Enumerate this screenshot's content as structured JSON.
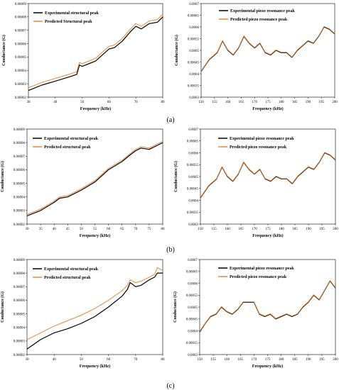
{
  "colors": {
    "experimental": "#000000",
    "predicted": "#e8873a",
    "frame": "#000000"
  },
  "panel_labels": [
    "(a)",
    "(b)",
    "(c)"
  ],
  "chart_data": [
    {
      "type": "line",
      "panel": "(a)",
      "side": "left",
      "xlabel": "Frequency (kHz)",
      "ylabel": "Conductance (G)",
      "xlim": [
        30,
        80
      ],
      "ylim": [
        2e-05,
        9e-05
      ],
      "xticks": [
        "30",
        "40",
        "50",
        "60",
        "70",
        "80"
      ],
      "yticks": [
        "0.00002",
        "0.00003",
        "0.00004",
        "0.00005",
        "0.00006",
        "0.00007",
        "0.00008",
        "0.00009"
      ],
      "legend_position": "top-left",
      "grid": false,
      "series": [
        {
          "name": "Experimental structural peak",
          "color": "experimental",
          "x": [
            30,
            35,
            40,
            45,
            48,
            49,
            50,
            55,
            60,
            62,
            65,
            68,
            70,
            72,
            75,
            78,
            80
          ],
          "y": [
            2.5e-05,
            2.9e-05,
            3.2e-05,
            3.5e-05,
            3.7e-05,
            4.4e-05,
            4.3e-05,
            4.7e-05,
            5.6e-05,
            5.7e-05,
            6.2e-05,
            6.9e-05,
            7.3e-05,
            7.1e-05,
            7.5e-05,
            7.6e-05,
            8e-05
          ]
        },
        {
          "name": "Predicted Structural peak",
          "color": "predicted",
          "x": [
            30,
            35,
            40,
            45,
            48,
            49,
            50,
            55,
            60,
            62,
            65,
            68,
            70,
            72,
            75,
            78,
            80
          ],
          "y": [
            2.7e-05,
            3.1e-05,
            3.4e-05,
            3.7e-05,
            3.9e-05,
            4.6e-05,
            4.5e-05,
            4.9e-05,
            5.8e-05,
            5.9e-05,
            6.4e-05,
            7.1e-05,
            7.5e-05,
            7.3e-05,
            7.7e-05,
            7.8e-05,
            8.2e-05
          ]
        }
      ]
    },
    {
      "type": "line",
      "panel": "(a)",
      "side": "right",
      "xlabel": "Frequency (kHz)",
      "ylabel": "Conductance (G)",
      "xlim": [
        150,
        200
      ],
      "ylim": [
        0.0003,
        0.0007
      ],
      "xticks": [
        "150",
        "155",
        "160",
        "165",
        "170",
        "175",
        "180",
        "185",
        "190",
        "195",
        "200"
      ],
      "yticks": [
        "0.0003",
        "0.00035",
        "0.0004",
        "0.00045",
        "0.0005",
        "0.00055",
        "0.0006",
        "0.00065",
        "0.0007"
      ],
      "legend_position": "top",
      "grid": false,
      "series": [
        {
          "name": "Experimental piezo resonance peak",
          "color": "experimental",
          "x": [
            150,
            153,
            156,
            158,
            160,
            162,
            164,
            166,
            168,
            170,
            172,
            174,
            176,
            178,
            180,
            182,
            184,
            186,
            188,
            190,
            192,
            194,
            196,
            198,
            200
          ],
          "y": [
            0.00041,
            0.00046,
            0.00049,
            0.00054,
            0.0005,
            0.00048,
            0.00051,
            0.00056,
            0.00053,
            0.00051,
            0.00053,
            0.00049,
            0.00048,
            0.0005,
            0.00049,
            0.00049,
            0.00047,
            0.0005,
            0.00052,
            0.00054,
            0.00053,
            0.00056,
            0.0006,
            0.00059,
            0.00057
          ]
        },
        {
          "name": "Predicted piezo resonance peak",
          "color": "predicted",
          "x": [
            150,
            153,
            156,
            158,
            160,
            162,
            164,
            166,
            168,
            170,
            172,
            174,
            176,
            178,
            180,
            182,
            184,
            186,
            188,
            190,
            192,
            194,
            196,
            198,
            200
          ],
          "y": [
            0.000412,
            0.000462,
            0.000492,
            0.000542,
            0.000502,
            0.000482,
            0.000512,
            0.000562,
            0.000532,
            0.000512,
            0.000532,
            0.000492,
            0.000482,
            0.000502,
            0.000492,
            0.000492,
            0.000472,
            0.000502,
            0.000522,
            0.000542,
            0.000532,
            0.000562,
            0.000602,
            0.000592,
            0.000572
          ]
        }
      ]
    },
    {
      "type": "line",
      "panel": "(b)",
      "side": "left",
      "xlabel": "Frequency (kHz)",
      "ylabel": "Conductance (G)",
      "xlim": [
        30,
        80
      ],
      "ylim": [
        2e-05,
        9e-05
      ],
      "xticks": [
        "30",
        "35",
        "40",
        "45",
        "50",
        "55",
        "60",
        "65",
        "70",
        "75",
        "80"
      ],
      "yticks": [
        "0.00002",
        "0.00003",
        "0.00004",
        "0.00005",
        "0.00006",
        "0.00007",
        "0.00008",
        "0.00009"
      ],
      "legend_position": "top-left",
      "grid": false,
      "series": [
        {
          "name": "Experimental structural peak",
          "color": "experimental",
          "x": [
            30,
            35,
            40,
            42,
            45,
            50,
            55,
            60,
            65,
            68,
            70,
            72,
            75,
            78,
            80
          ],
          "y": [
            2.6e-05,
            3e-05,
            3.6e-05,
            3.9e-05,
            4e-05,
            4.5e-05,
            5.1e-05,
            6e-05,
            6.6e-05,
            7.1e-05,
            7.4e-05,
            7.6e-05,
            7.5e-05,
            7.8e-05,
            8e-05
          ]
        },
        {
          "name": "Predicted structural peak",
          "color": "predicted",
          "x": [
            30,
            35,
            40,
            42,
            45,
            50,
            55,
            60,
            65,
            68,
            70,
            72,
            75,
            78,
            80
          ],
          "y": [
            2.7e-05,
            3.1e-05,
            3.7e-05,
            4e-05,
            4.1e-05,
            4.6e-05,
            5.2e-05,
            6.1e-05,
            6.7e-05,
            7.2e-05,
            7.5e-05,
            7.7e-05,
            7.6e-05,
            7.9e-05,
            8.1e-05
          ]
        }
      ]
    },
    {
      "type": "line",
      "panel": "(b)",
      "side": "right",
      "xlabel": "Frequency (kHz)",
      "ylabel": "Conductance (G)",
      "xlim": [
        150,
        200
      ],
      "ylim": [
        0.0003,
        0.0007
      ],
      "xticks": [
        "150",
        "155",
        "160",
        "165",
        "170",
        "175",
        "180",
        "185",
        "190",
        "195",
        "200"
      ],
      "yticks": [
        "0.0003",
        "0.00035",
        "0.0004",
        "0.00045",
        "0.0005",
        "0.00055",
        "0.0006",
        "0.00065",
        "0.0007"
      ],
      "legend_position": "top",
      "grid": false,
      "series": [
        {
          "name": "Experimental piezo resonance peak",
          "color": "experimental",
          "x": [
            150,
            153,
            156,
            158,
            160,
            162,
            164,
            166,
            168,
            170,
            172,
            174,
            176,
            178,
            180,
            182,
            184,
            186,
            188,
            190,
            192,
            194,
            196,
            198,
            200
          ],
          "y": [
            0.00041,
            0.00046,
            0.00049,
            0.00054,
            0.0005,
            0.00048,
            0.00051,
            0.00056,
            0.00053,
            0.00051,
            0.00053,
            0.00049,
            0.00048,
            0.0005,
            0.00049,
            0.00049,
            0.00047,
            0.0005,
            0.00052,
            0.00054,
            0.00053,
            0.00056,
            0.0006,
            0.00059,
            0.00057
          ]
        },
        {
          "name": "Predicted piezo resonance peak",
          "color": "predicted",
          "x": [
            150,
            153,
            156,
            158,
            160,
            162,
            164,
            166,
            168,
            170,
            172,
            174,
            176,
            178,
            180,
            182,
            184,
            186,
            188,
            190,
            192,
            194,
            196,
            198,
            200
          ],
          "y": [
            0.000412,
            0.000462,
            0.000492,
            0.000542,
            0.000502,
            0.000482,
            0.000512,
            0.000562,
            0.000532,
            0.000512,
            0.000532,
            0.000492,
            0.000482,
            0.000502,
            0.000492,
            0.000492,
            0.000472,
            0.000502,
            0.000522,
            0.000542,
            0.000532,
            0.000562,
            0.000602,
            0.000592,
            0.000572
          ]
        }
      ]
    },
    {
      "type": "line",
      "panel": "(c)",
      "side": "left",
      "xlabel": "Frequency (kHz)",
      "ylabel": "Conductance (G)",
      "xlim": [
        30,
        80
      ],
      "ylim": [
        2e-05,
        9e-05
      ],
      "xticks": [
        "30",
        "40",
        "50",
        "60",
        "70",
        "80"
      ],
      "yticks": [
        "0.00002",
        "0.00003",
        "0.00004",
        "0.00005",
        "0.00006",
        "0.00007",
        "0.00008",
        "0.00009"
      ],
      "legend_position": "top-left",
      "grid": false,
      "series": [
        {
          "name": "Experimental structural peak",
          "color": "experimental",
          "x": [
            30,
            35,
            40,
            45,
            50,
            55,
            60,
            65,
            67,
            68,
            70,
            72,
            75,
            77,
            78,
            80
          ],
          "y": [
            2.4e-05,
            3.1e-05,
            3.6e-05,
            3.9e-05,
            4.3e-05,
            4.8e-05,
            5.5e-05,
            6.3e-05,
            6.8e-05,
            7.3e-05,
            7e-05,
            7.1e-05,
            7.5e-05,
            7.7e-05,
            8e-05,
            8e-05
          ]
        },
        {
          "name": "Predicted structural peak",
          "color": "predicted",
          "x": [
            30,
            35,
            40,
            45,
            50,
            55,
            60,
            65,
            67,
            68,
            70,
            72,
            75,
            77,
            78,
            80
          ],
          "y": [
            3.1e-05,
            3.6e-05,
            4.1e-05,
            4.5e-05,
            4.9e-05,
            5.4e-05,
            6e-05,
            6.7e-05,
            7.1e-05,
            7.5e-05,
            7.3e-05,
            7.4e-05,
            7.7e-05,
            7.9e-05,
            8.4e-05,
            8.2e-05
          ]
        }
      ]
    },
    {
      "type": "line",
      "panel": "(c)",
      "side": "right",
      "xlabel": "Frequency (kHz)",
      "ylabel": "Conductance (G)",
      "xlim": [
        150,
        200
      ],
      "ylim": [
        0.0003,
        0.0007
      ],
      "xticks": [
        "150",
        "155",
        "160",
        "165",
        "170",
        "175",
        "180",
        "185",
        "190",
        "195",
        "200"
      ],
      "yticks": [
        "0.0003",
        "0.00035",
        "0.0004",
        "0.00045",
        "0.0005",
        "0.00055",
        "0.0006",
        "0.00065",
        "0.0007"
      ],
      "legend_position": "top",
      "grid": false,
      "series": [
        {
          "name": "Experimental piezo resonance peak",
          "color": "experimental",
          "x": [
            150,
            152,
            154,
            156,
            158,
            160,
            162,
            164,
            166,
            168,
            170,
            172,
            174,
            176,
            178,
            180,
            182,
            184,
            186,
            188,
            190,
            192,
            194,
            196,
            198,
            200
          ],
          "y": [
            0.000395,
            0.00043,
            0.00046,
            0.00047,
            0.0005,
            0.00048,
            0.00047,
            0.00049,
            0.00052,
            0.00052,
            0.00052,
            0.00047,
            0.00046,
            0.00047,
            0.00045,
            0.00046,
            0.00047,
            0.00046,
            0.00047,
            0.0005,
            0.00052,
            0.00055,
            0.00053,
            0.00057,
            0.00061,
            0.00058
          ]
        },
        {
          "name": "Predicted piezo resonance peak",
          "color": "predicted",
          "x": [
            150,
            152,
            154,
            156,
            158,
            160,
            162,
            164,
            166,
            168,
            170,
            172,
            174,
            176,
            178,
            180,
            182,
            184,
            186,
            188,
            190,
            192,
            194,
            196,
            198,
            200
          ],
          "y": [
            0.000398,
            0.000432,
            0.000462,
            0.000472,
            0.000502,
            0.000482,
            0.000472,
            0.000492,
            0.000522,
            0.000522,
            0.000522,
            0.000472,
            0.000462,
            0.000472,
            0.000452,
            0.000462,
            0.000472,
            0.000462,
            0.000472,
            0.000502,
            0.000522,
            0.000552,
            0.000532,
            0.000572,
            0.000612,
            0.000582
          ]
        }
      ]
    }
  ]
}
